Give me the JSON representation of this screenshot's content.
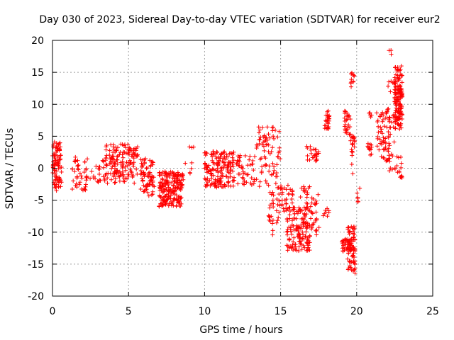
{
  "chart_data": {
    "type": "scatter",
    "title": "Day 030 of 2023, Sidereal Day-to-day VTEC variation (SDTVAR) for receiver eur2",
    "xlabel": "GPS time / hours",
    "ylabel": "SDTVAR / TECUs",
    "xlim": [
      0,
      25
    ],
    "ylim": [
      -20,
      20
    ],
    "xticks": [
      0,
      5,
      10,
      15,
      20,
      25
    ],
    "xtick_labels": [
      "0",
      "5",
      "10",
      "15",
      "20",
      "25"
    ],
    "yticks": [
      -20,
      -15,
      -10,
      -5,
      0,
      5,
      10,
      15,
      20
    ],
    "ytick_labels": [
      "-20",
      "-15",
      "-10",
      "-5",
      "0",
      "5",
      "10",
      "15",
      "20"
    ],
    "grid": true,
    "marker": "+",
    "marker_color": "#ff0000",
    "series": [
      {
        "name": "SDTVAR",
        "clusters": [
          {
            "x0": 0.0,
            "x1": 0.6,
            "y0": -3.5,
            "y1": 4.2,
            "n": 90
          },
          {
            "x0": 1.3,
            "x1": 2.3,
            "y0": -3.5,
            "y1": 2.0,
            "n": 45
          },
          {
            "x0": 2.4,
            "x1": 3.2,
            "y0": -3.0,
            "y1": 0.5,
            "n": 15
          },
          {
            "x0": 3.3,
            "x1": 5.6,
            "y0": -2.5,
            "y1": 3.8,
            "n": 160
          },
          {
            "x0": 5.8,
            "x1": 6.7,
            "y0": -4.5,
            "y1": 1.5,
            "n": 70
          },
          {
            "x0": 7.0,
            "x1": 8.6,
            "y0": -6.0,
            "y1": -0.5,
            "n": 200
          },
          {
            "x0": 8.6,
            "x1": 9.3,
            "y0": -1.0,
            "y1": 3.5,
            "n": 8
          },
          {
            "x0": 10.0,
            "x1": 12.0,
            "y0": -3.0,
            "y1": 2.8,
            "n": 170
          },
          {
            "x0": 12.1,
            "x1": 13.3,
            "y0": -3.0,
            "y1": 2.0,
            "n": 45
          },
          {
            "x0": 13.4,
            "x1": 14.2,
            "y0": -3.0,
            "y1": 6.5,
            "n": 40
          },
          {
            "x0": 14.2,
            "x1": 15.0,
            "y0": -10.5,
            "y1": 6.7,
            "n": 70
          },
          {
            "x0": 15.0,
            "x1": 15.8,
            "y0": -7.0,
            "y1": -2.5,
            "n": 30
          },
          {
            "x0": 15.4,
            "x1": 17.0,
            "y0": -13.0,
            "y1": -6.0,
            "n": 150
          },
          {
            "x0": 16.2,
            "x1": 17.0,
            "y0": -6.0,
            "y1": -2.5,
            "n": 15
          },
          {
            "x0": 17.0,
            "x1": 17.6,
            "y0": -10.5,
            "y1": -4.0,
            "n": 25
          },
          {
            "x0": 16.7,
            "x1": 17.5,
            "y0": 1.0,
            "y1": 3.5,
            "n": 25
          },
          {
            "x0": 17.8,
            "x1": 18.2,
            "y0": -7.5,
            "y1": -6.0,
            "n": 8
          },
          {
            "x0": 17.9,
            "x1": 18.2,
            "y0": 6.0,
            "y1": 9.0,
            "n": 25
          },
          {
            "x0": 19.0,
            "x1": 19.6,
            "y0": -13.0,
            "y1": -11.0,
            "n": 40
          },
          {
            "x0": 19.2,
            "x1": 19.6,
            "y0": 5.0,
            "y1": 9.0,
            "n": 30
          },
          {
            "x0": 19.4,
            "x1": 19.9,
            "y0": -16.5,
            "y1": -9.0,
            "n": 70
          },
          {
            "x0": 19.6,
            "x1": 19.9,
            "y0": -1.0,
            "y1": 5.0,
            "n": 20
          },
          {
            "x0": 19.6,
            "x1": 19.9,
            "y0": 12.5,
            "y1": 15.0,
            "n": 12
          },
          {
            "x0": 20.0,
            "x1": 20.3,
            "y0": -5.5,
            "y1": -3.0,
            "n": 6
          },
          {
            "x0": 20.7,
            "x1": 21.0,
            "y0": 2.0,
            "y1": 4.0,
            "n": 12
          },
          {
            "x0": 20.8,
            "x1": 21.0,
            "y0": 7.0,
            "y1": 9.0,
            "n": 5
          },
          {
            "x0": 21.3,
            "x1": 22.2,
            "y0": 1.0,
            "y1": 9.0,
            "n": 60
          },
          {
            "x0": 22.0,
            "x1": 22.6,
            "y0": -0.5,
            "y1": 14.0,
            "n": 40
          },
          {
            "x0": 22.1,
            "x1": 22.3,
            "y0": 16.5,
            "y1": 18.5,
            "n": 3
          },
          {
            "x0": 22.5,
            "x1": 23.0,
            "y0": 6.0,
            "y1": 16.0,
            "n": 140
          },
          {
            "x0": 22.6,
            "x1": 23.0,
            "y0": -1.5,
            "y1": 2.0,
            "n": 15
          }
        ]
      }
    ]
  }
}
